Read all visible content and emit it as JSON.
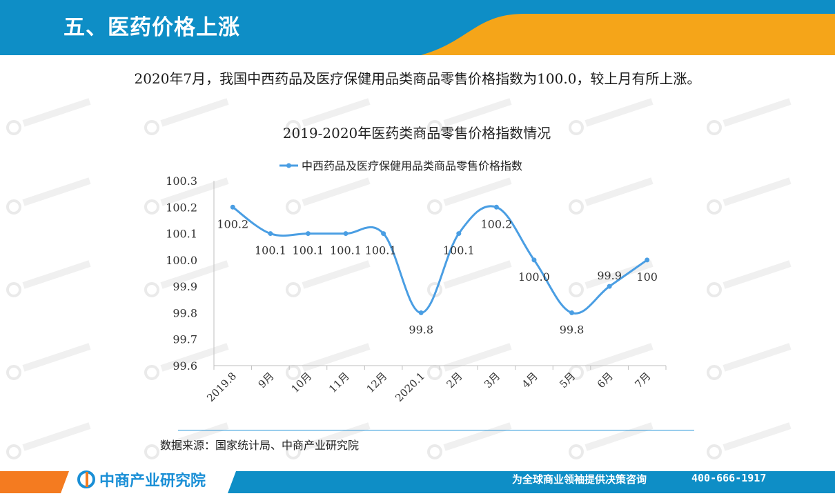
{
  "header": {
    "title": "五、医药价格上涨"
  },
  "summary_text": "2020年7月，我国中西药品及医疗保健用品类商品零售价格指数为100.0，较上月有所上涨。",
  "source_text": "数据来源：国家统计局、中商产业研究院",
  "footer": {
    "brand": "中商产业研究院",
    "tagline": "为全球商业领袖提供决策咨询",
    "phone": "400-666-1917"
  },
  "colors": {
    "header_blue": "#0e8ec6",
    "accent_orange": "#f5a519",
    "line_blue": "#4a9ee3",
    "footer_blue": "#0e8ec6"
  },
  "chart_data": {
    "type": "line",
    "title": "2019-2020年医药类商品零售价格指数情况",
    "categories": [
      "2019.8",
      "9月",
      "10月",
      "11月",
      "12月",
      "2020.1",
      "2月",
      "3月",
      "4月",
      "5月",
      "6月",
      "7月"
    ],
    "series": [
      {
        "name": "中西药品及医疗保健用品类商品零售价格指数",
        "values": [
          100.2,
          100.1,
          100.1,
          100.1,
          100.1,
          99.8,
          100.1,
          100.2,
          100.0,
          99.8,
          99.9,
          100.0
        ],
        "labels": [
          "100.2",
          "100.1",
          "100.1",
          "100.1",
          "100.1",
          "99.8",
          "100.1",
          "100.2",
          "100.0",
          "99.8",
          "99.9",
          "100"
        ]
      }
    ],
    "y_ticks": [
      "100.3",
      "100.2",
      "100.1",
      "100.0",
      "99.9",
      "99.8",
      "99.7",
      "99.6"
    ],
    "ylim": [
      99.6,
      100.3
    ],
    "legend_position": "top-center",
    "grid": false,
    "smooth": true
  }
}
